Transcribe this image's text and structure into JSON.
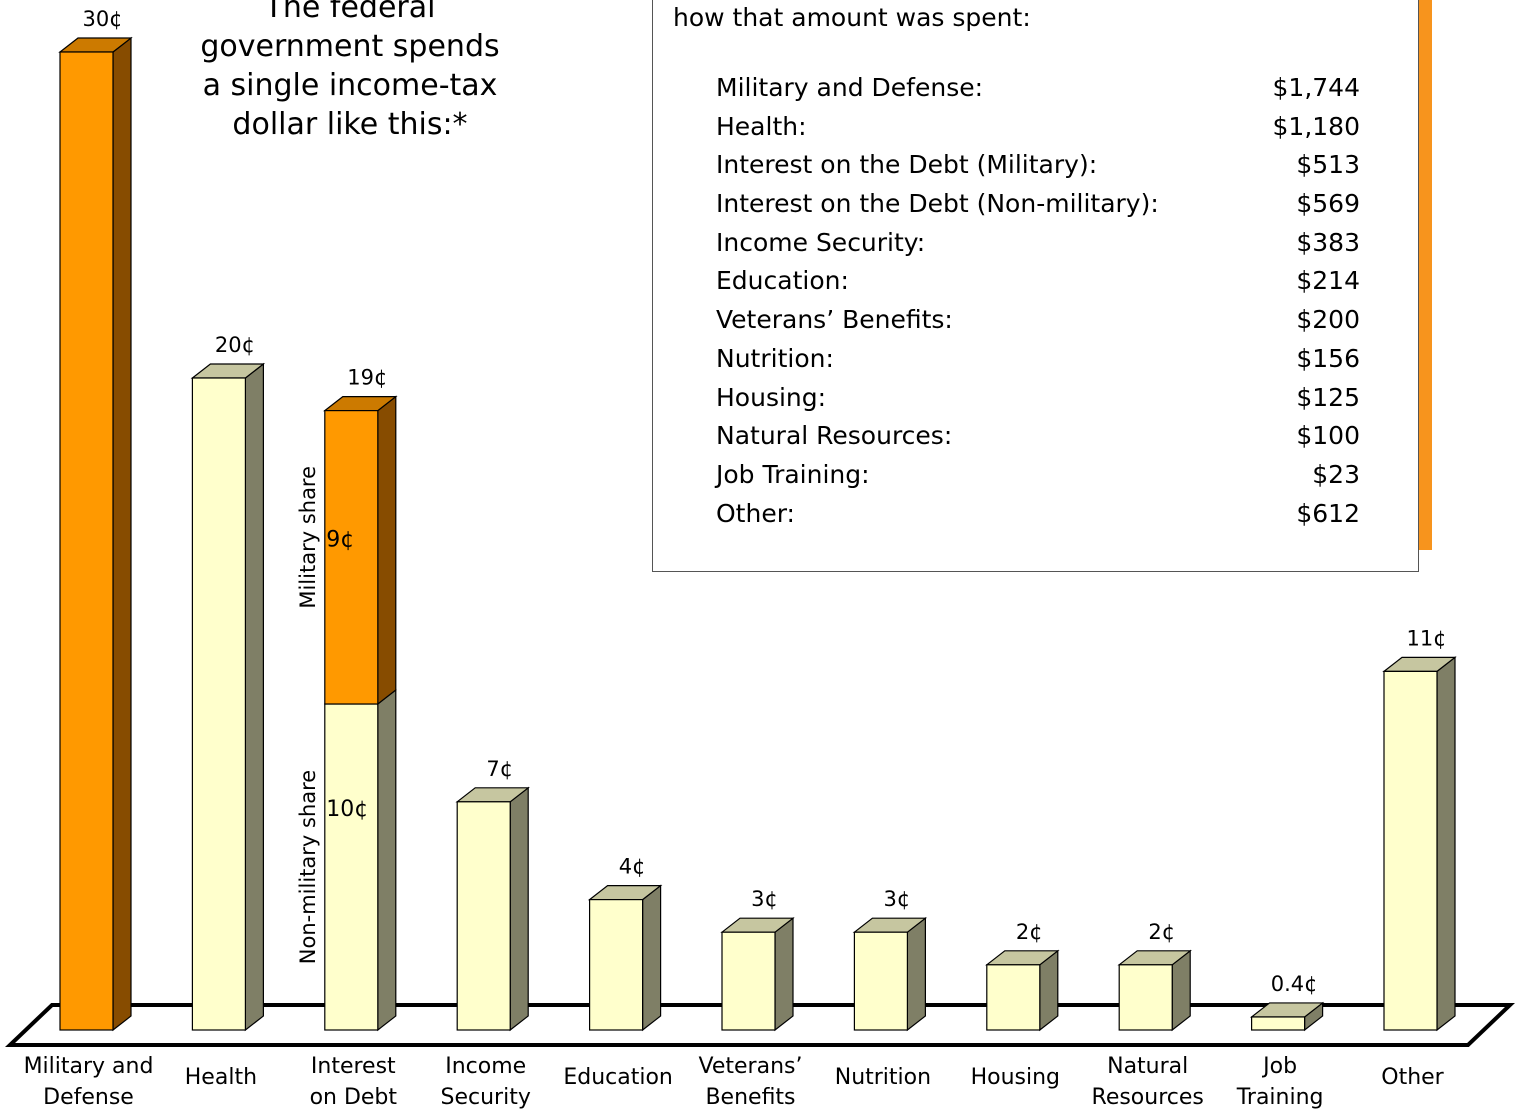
{
  "subtitle": "The federal\ngovernment spends\na single income-tax\ndollar like this:*",
  "infobox": {
    "intro": "how that amount was spent:",
    "rows": [
      {
        "label": "Military and Defense:",
        "amount": "$1,744"
      },
      {
        "label": "Health:",
        "amount": "$1,180"
      },
      {
        "label": "Interest on the Debt (Military):",
        "amount": "$513"
      },
      {
        "label": "Interest on the Debt (Non-military):",
        "amount": "$569"
      },
      {
        "label": "Income Security:",
        "amount": "$383"
      },
      {
        "label": "Education:",
        "amount": "$214"
      },
      {
        "label": "Veterans’ Benefits:",
        "amount": "$200"
      },
      {
        "label": "Nutrition:",
        "amount": "$156"
      },
      {
        "label": "Housing:",
        "amount": "$125"
      },
      {
        "label": "Natural Resources:",
        "amount": "$100"
      },
      {
        "label": "Job Training:",
        "amount": "$23"
      },
      {
        "label": "Other:",
        "amount": "$612"
      }
    ]
  },
  "chart_data": {
    "type": "bar",
    "unit": "¢",
    "categories": [
      "Military and\nDefense",
      "Health",
      "Interest\non Debt",
      "Income\nSecurity",
      "Education",
      "Veterans’\nBenefits",
      "Nutrition",
      "Housing",
      "Natural\nResources",
      "Job\nTraining",
      "Other"
    ],
    "values": [
      30,
      20,
      19,
      7,
      4,
      3,
      3,
      2,
      2,
      0.4,
      11
    ],
    "value_labels": [
      "30¢",
      "20¢",
      "19¢",
      "7¢",
      "4¢",
      "3¢",
      "3¢",
      "2¢",
      "2¢",
      "0.4¢",
      "11¢"
    ],
    "highlight": [
      true,
      false,
      false,
      false,
      false,
      false,
      false,
      false,
      false,
      false,
      false
    ],
    "stacked": {
      "index": 2,
      "segments": [
        {
          "name": "Non-military share",
          "value": 10,
          "label": "10¢"
        },
        {
          "name": "Military share",
          "value": 9,
          "label": "9¢"
        }
      ]
    },
    "colors": {
      "highlight_front": "#ff9900",
      "highlight_top": "#cc7a00",
      "highlight_side": "#874c00",
      "normal_front": "#ffffcc",
      "normal_top": "#c6c6a0",
      "normal_side": "#7f7f66"
    }
  }
}
